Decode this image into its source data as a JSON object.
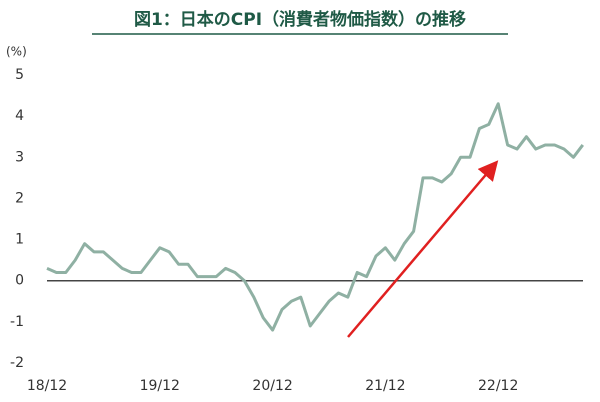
{
  "chart_data": {
    "type": "line",
    "title": "図1：日本のCPI（消費者物価指数）の推移",
    "y_label": "(%)",
    "categories": [
      "18/12",
      null,
      null,
      null,
      null,
      null,
      null,
      null,
      null,
      null,
      null,
      null,
      "19/12",
      null,
      null,
      null,
      null,
      null,
      null,
      null,
      null,
      null,
      null,
      null,
      "20/12",
      null,
      null,
      null,
      null,
      null,
      null,
      null,
      null,
      null,
      null,
      null,
      "21/12",
      null,
      null,
      null,
      null,
      null,
      null,
      null,
      null,
      null,
      null,
      null,
      "22/12",
      null,
      null,
      null,
      null,
      null,
      null,
      null,
      null,
      null
    ],
    "series": [
      {
        "name": "CPI",
        "color": "#8fb0a3",
        "values": [
          0.3,
          0.2,
          0.2,
          0.5,
          0.9,
          0.7,
          0.7,
          0.5,
          0.3,
          0.2,
          0.2,
          0.5,
          0.8,
          0.7,
          0.4,
          0.4,
          0.1,
          0.1,
          0.1,
          0.3,
          0.2,
          0.0,
          -0.4,
          -0.9,
          -1.2,
          -0.7,
          -0.5,
          -0.4,
          -1.1,
          -0.8,
          -0.5,
          -0.3,
          -0.4,
          0.2,
          0.1,
          0.6,
          0.8,
          0.5,
          0.9,
          1.2,
          2.5,
          2.5,
          2.4,
          2.6,
          3.0,
          3.0,
          3.7,
          3.8,
          4.3,
          3.3,
          3.2,
          3.5,
          3.2,
          3.3,
          3.3,
          3.2,
          3.0,
          3.3
        ]
      }
    ],
    "ylim": [
      -2,
      5
    ],
    "yticks": [
      -2,
      -1,
      0,
      1,
      2,
      3,
      4,
      5
    ],
    "zero_line": true
  }
}
